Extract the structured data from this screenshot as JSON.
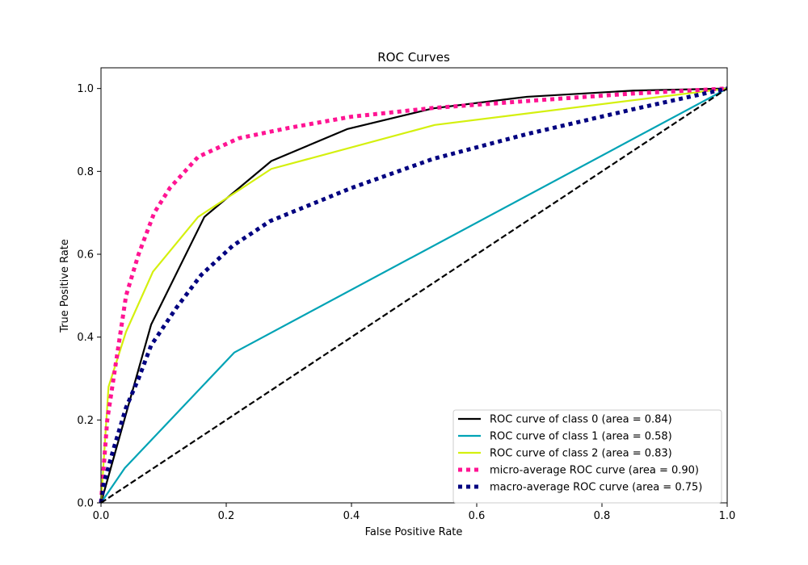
{
  "chart_data": {
    "type": "line",
    "title": "ROC Curves",
    "xlabel": "False Positive Rate",
    "ylabel": "True Positive Rate",
    "xlim": [
      0.0,
      1.0
    ],
    "ylim": [
      0.0,
      1.05
    ],
    "xticks": [
      "0.0",
      "0.2",
      "0.4",
      "0.6",
      "0.8",
      "1.0"
    ],
    "yticks": [
      "0.0",
      "0.2",
      "0.4",
      "0.6",
      "0.8",
      "1.0"
    ],
    "grid": false,
    "legend_position": "lower-right",
    "series": [
      {
        "name": "ROC curve of class 0 (area = 0.84)",
        "color": "#000000",
        "style": "solid",
        "points": [
          [
            0.0,
            0.0
          ],
          [
            0.08,
            0.43
          ],
          [
            0.165,
            0.69
          ],
          [
            0.272,
            0.825
          ],
          [
            0.393,
            0.902
          ],
          [
            0.53,
            0.952
          ],
          [
            0.68,
            0.98
          ],
          [
            0.85,
            0.995
          ],
          [
            1.0,
            1.0
          ]
        ]
      },
      {
        "name": "ROC curve of class 1 (area = 0.58)",
        "color": "#00a3b5",
        "style": "solid",
        "points": [
          [
            0.0,
            0.0
          ],
          [
            0.038,
            0.084
          ],
          [
            0.213,
            0.363
          ],
          [
            1.0,
            1.0
          ]
        ]
      },
      {
        "name": "ROC curve of class 2 (area = 0.83)",
        "color": "#d4f00e",
        "style": "solid",
        "points": [
          [
            0.0,
            0.0
          ],
          [
            0.012,
            0.28
          ],
          [
            0.04,
            0.413
          ],
          [
            0.083,
            0.558
          ],
          [
            0.155,
            0.69
          ],
          [
            0.272,
            0.806
          ],
          [
            0.533,
            0.912
          ],
          [
            1.0,
            1.0
          ]
        ]
      },
      {
        "name": "micro-average ROC curve (area = 0.90)",
        "color": "#ff1493",
        "style": "dotted",
        "points": [
          [
            0.0,
            0.0
          ],
          [
            0.01,
            0.2
          ],
          [
            0.02,
            0.3
          ],
          [
            0.03,
            0.4
          ],
          [
            0.04,
            0.5
          ],
          [
            0.06,
            0.6
          ],
          [
            0.085,
            0.7
          ],
          [
            0.11,
            0.76
          ],
          [
            0.155,
            0.835
          ],
          [
            0.22,
            0.88
          ],
          [
            0.3,
            0.905
          ],
          [
            0.4,
            0.932
          ],
          [
            0.53,
            0.953
          ],
          [
            0.7,
            0.972
          ],
          [
            0.85,
            0.988
          ],
          [
            1.0,
            1.0
          ]
        ]
      },
      {
        "name": "macro-average ROC curve (area = 0.75)",
        "color": "#000080",
        "style": "dotted",
        "points": [
          [
            0.0,
            0.0
          ],
          [
            0.005,
            0.05
          ],
          [
            0.02,
            0.13
          ],
          [
            0.04,
            0.23
          ],
          [
            0.06,
            0.3
          ],
          [
            0.08,
            0.38
          ],
          [
            0.12,
            0.47
          ],
          [
            0.16,
            0.55
          ],
          [
            0.21,
            0.62
          ],
          [
            0.27,
            0.68
          ],
          [
            0.4,
            0.76
          ],
          [
            0.53,
            0.83
          ],
          [
            0.68,
            0.89
          ],
          [
            0.85,
            0.95
          ],
          [
            1.0,
            1.0
          ]
        ]
      },
      {
        "color": "#000000",
        "style": "dashed",
        "points": [
          [
            0.0,
            0.0
          ],
          [
            1.0,
            1.0
          ]
        ]
      }
    ]
  }
}
